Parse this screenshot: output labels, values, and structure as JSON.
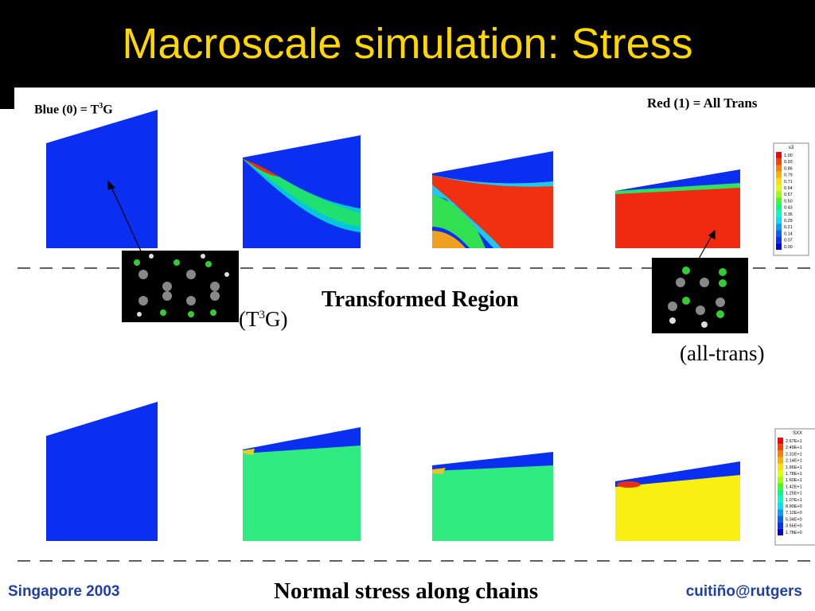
{
  "header": {
    "title": "Macroscale simulation: Stress"
  },
  "labels": {
    "blue": {
      "pre": "Blue (0) = T",
      "sup": "3",
      "post": "G"
    },
    "red": "Red (1) = All Trans",
    "transformed": "Transformed Region",
    "t3g": {
      "pre": "(T",
      "sup": "3",
      "post": "G)"
    },
    "alltrans": "(all-trans)"
  },
  "legends": [
    {
      "title": "s3",
      "labels": [
        "1.00",
        "0.93",
        "0.86",
        "0.79",
        "0.71",
        "0.64",
        "0.57",
        "0.50",
        "0.43",
        "0.36",
        "0.29",
        "0.21",
        "0.14",
        "0.07",
        "0.00"
      ]
    },
    {
      "title": "SXX",
      "labels": [
        "2.67E+1",
        "2.49E+1",
        "2.31E+1",
        "2.14E+1",
        "1.96E+1",
        "1.78E+1",
        "1.60E+1",
        "1.42E+1",
        "1.25E+1",
        "1.07E+1",
        "8.90E+0",
        "7.12E+0",
        "5.34E+0",
        "3.56E+0",
        "1.78E+0"
      ]
    }
  ],
  "footer": {
    "left": "Singapore 2003",
    "center": "Normal stress along chains",
    "right": "cuitiño@rutgers"
  }
}
